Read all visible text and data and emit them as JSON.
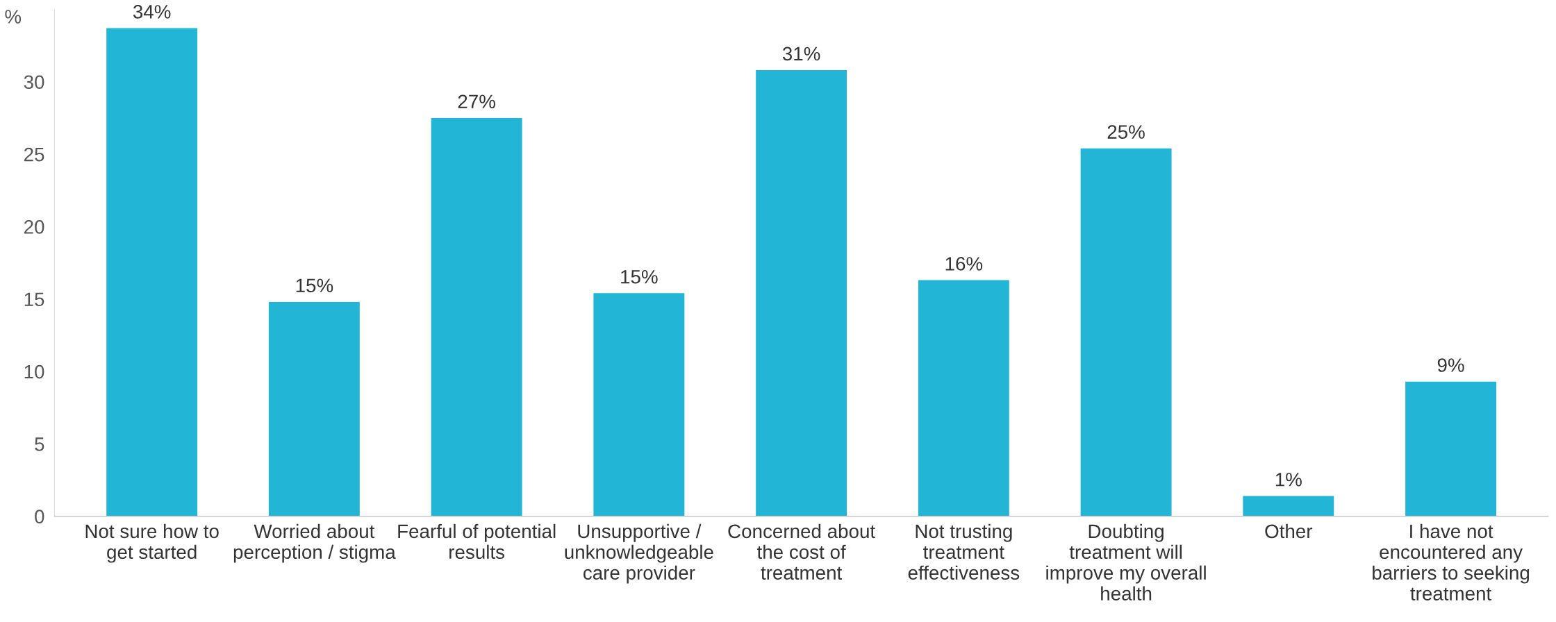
{
  "chart_data": {
    "type": "bar",
    "ylabel": "%",
    "categories": [
      "Not sure how to\nget started",
      "Worried about\nperception / stigma",
      "Fearful of potential\nresults",
      "Unsupportive /\nunknowledgeable\ncare provider",
      "Concerned about\nthe cost of\ntreatment",
      "Not trusting\ntreatment\neffectiveness",
      "Doubting\ntreatment will\nimprove my overall\nhealth",
      "Other",
      "I have not\nencountered any\nbarriers to seeking\ntreatment"
    ],
    "values": [
      33.7,
      14.8,
      27.5,
      15.4,
      30.8,
      16.3,
      25.4,
      1.4,
      9.3
    ],
    "value_labels": [
      "34%",
      "15%",
      "27%",
      "15%",
      "31%",
      "16%",
      "25%",
      "1%",
      "9%"
    ],
    "color": "#23b5d6",
    "ylim": [
      0,
      35
    ],
    "yticks": [
      0,
      5,
      10,
      15,
      20,
      25,
      30
    ],
    "grid": false,
    "legend": false
  }
}
